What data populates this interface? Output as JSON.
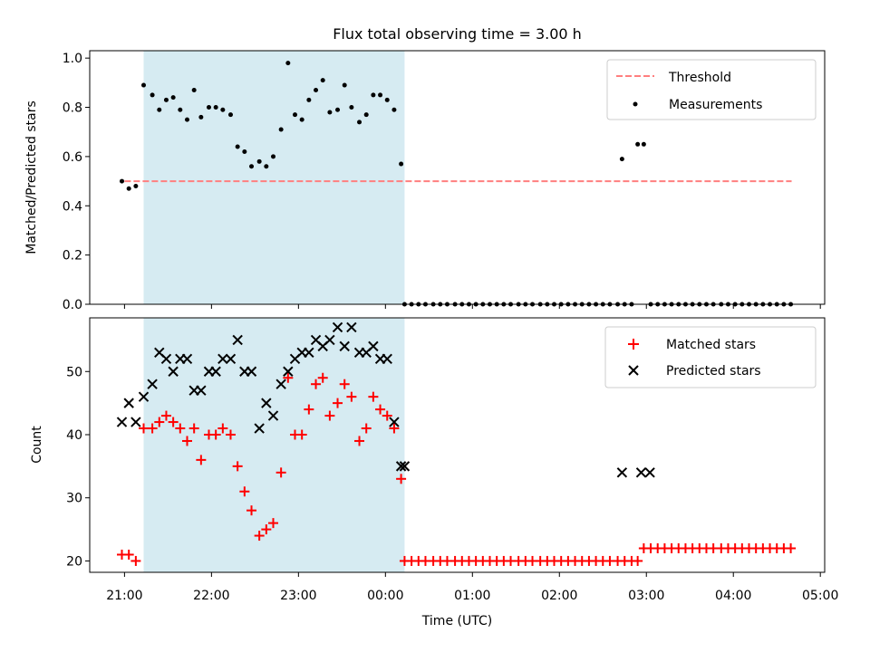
{
  "chart_data": [
    {
      "type": "scatter",
      "title": "Flux total observing time = 3.00 h",
      "xlabel": "",
      "ylabel": "Matched/Predicted stars",
      "ylim": [
        0,
        1.03
      ],
      "yticks": [
        0.0,
        0.2,
        0.4,
        0.6,
        0.8,
        1.0
      ],
      "ytick_labels": [
        "0.0",
        "0.2",
        "0.4",
        "0.6",
        "0.8",
        "1.0"
      ],
      "xlim": [
        20.6,
        29.05
      ],
      "xticks": [
        21,
        22,
        23,
        24,
        25,
        26,
        27,
        28,
        29
      ],
      "shaded_interval": [
        21.22,
        24.22
      ],
      "shade_color": "#add8e6",
      "grid": false,
      "legend_position": "top-right",
      "threshold": {
        "name": "Threshold",
        "value": 0.5,
        "x_range": [
          21.0,
          28.67
        ],
        "color": "#ff7f7f",
        "style": "dashed"
      },
      "measurements": {
        "name": "Measurements",
        "color": "#000000",
        "x": [
          20.97,
          21.05,
          21.13,
          21.22,
          21.32,
          21.4,
          21.48,
          21.56,
          21.64,
          21.72,
          21.8,
          21.88,
          21.97,
          22.05,
          22.13,
          22.22,
          22.3,
          22.38,
          22.46,
          22.55,
          22.63,
          22.71,
          22.8,
          22.88,
          22.96,
          23.04,
          23.12,
          23.2,
          23.28,
          23.36,
          23.45,
          23.53,
          23.61,
          23.7,
          23.78,
          23.86,
          23.94,
          24.02,
          24.1,
          24.18,
          24.22,
          24.3,
          24.38,
          24.46,
          24.55,
          24.63,
          24.71,
          24.8,
          24.88,
          24.96,
          25.04,
          25.12,
          25.2,
          25.28,
          25.36,
          25.44,
          25.53,
          25.61,
          25.69,
          25.78,
          25.86,
          25.94,
          26.02,
          26.1,
          26.18,
          26.26,
          26.34,
          26.42,
          26.5,
          26.58,
          26.67,
          26.72,
          26.75,
          26.83,
          26.9,
          26.97,
          27.05,
          27.13,
          27.21,
          27.29,
          27.37,
          27.45,
          27.53,
          27.61,
          27.69,
          27.77,
          27.86,
          27.94,
          28.02,
          28.1,
          28.18,
          28.26,
          28.34,
          28.42,
          28.5,
          28.58,
          28.66
        ],
        "y": [
          0.5,
          0.47,
          0.48,
          0.89,
          0.85,
          0.79,
          0.83,
          0.84,
          0.79,
          0.75,
          0.87,
          0.76,
          0.8,
          0.8,
          0.79,
          0.77,
          0.64,
          0.62,
          0.56,
          0.58,
          0.56,
          0.6,
          0.71,
          0.98,
          0.77,
          0.75,
          0.83,
          0.87,
          0.91,
          0.78,
          0.79,
          0.89,
          0.8,
          0.74,
          0.77,
          0.85,
          0.85,
          0.83,
          0.79,
          0.57,
          0.0,
          0.0,
          0.0,
          0.0,
          0.0,
          0.0,
          0.0,
          0.0,
          0.0,
          0.0,
          0.0,
          0.0,
          0.0,
          0.0,
          0.0,
          0.0,
          0.0,
          0.0,
          0.0,
          0.0,
          0.0,
          0.0,
          0.0,
          0.0,
          0.0,
          0.0,
          0.0,
          0.0,
          0.0,
          0.0,
          0.0,
          0.59,
          0.0,
          0.0,
          0.65,
          0.65,
          0.0,
          0.0,
          0.0,
          0.0,
          0.0,
          0.0,
          0.0,
          0.0,
          0.0,
          0.0,
          0.0,
          0.0,
          0.0,
          0.0,
          0.0,
          0.0,
          0.0,
          0.0,
          0.0,
          0.0,
          0.0
        ]
      }
    },
    {
      "type": "scatter",
      "title": "",
      "xlabel": "Time (UTC)",
      "ylabel": "Count",
      "ylim": [
        18.2,
        58.5
      ],
      "yticks": [
        20,
        30,
        40,
        50
      ],
      "ytick_labels": [
        "20",
        "30",
        "40",
        "50"
      ],
      "xlim": [
        20.6,
        29.05
      ],
      "xticks": [
        21,
        22,
        23,
        24,
        25,
        26,
        27,
        28,
        29
      ],
      "xtick_labels": [
        "21:00",
        "22:00",
        "23:00",
        "00:00",
        "01:00",
        "02:00",
        "03:00",
        "04:00",
        "05:00"
      ],
      "shaded_interval": [
        21.22,
        24.22
      ],
      "shade_color": "#add8e6",
      "grid": false,
      "legend_position": "top-right",
      "series": [
        {
          "name": "Matched stars",
          "marker": "plus",
          "color": "#ff0000",
          "x": [
            20.97,
            21.05,
            21.13,
            21.22,
            21.32,
            21.4,
            21.48,
            21.56,
            21.64,
            21.72,
            21.8,
            21.88,
            21.97,
            22.05,
            22.13,
            22.22,
            22.3,
            22.38,
            22.46,
            22.55,
            22.63,
            22.71,
            22.8,
            22.88,
            22.96,
            23.04,
            23.12,
            23.2,
            23.28,
            23.36,
            23.45,
            23.53,
            23.61,
            23.7,
            23.78,
            23.86,
            23.94,
            24.02,
            24.1,
            24.18,
            24.22,
            24.3,
            24.38,
            24.46,
            24.55,
            24.63,
            24.71,
            24.8,
            24.88,
            24.96,
            25.04,
            25.12,
            25.2,
            25.28,
            25.36,
            25.44,
            25.53,
            25.61,
            25.69,
            25.78,
            25.86,
            25.94,
            26.02,
            26.1,
            26.18,
            26.26,
            26.34,
            26.42,
            26.5,
            26.58,
            26.67,
            26.75,
            26.83,
            26.9,
            26.97,
            27.05,
            27.13,
            27.21,
            27.29,
            27.37,
            27.45,
            27.53,
            27.61,
            27.69,
            27.77,
            27.86,
            27.94,
            28.02,
            28.1,
            28.18,
            28.26,
            28.34,
            28.42,
            28.5,
            28.58,
            28.66
          ],
          "values": [
            21,
            21,
            20,
            41,
            41,
            42,
            43,
            42,
            41,
            39,
            41,
            36,
            40,
            40,
            41,
            40,
            35,
            31,
            28,
            24,
            25,
            26,
            34,
            49,
            40,
            40,
            44,
            48,
            49,
            43,
            45,
            48,
            46,
            39,
            41,
            46,
            44,
            43,
            41,
            33,
            20,
            20,
            20,
            20,
            20,
            20,
            20,
            20,
            20,
            20,
            20,
            20,
            20,
            20,
            20,
            20,
            20,
            20,
            20,
            20,
            20,
            20,
            20,
            20,
            20,
            20,
            20,
            20,
            20,
            20,
            20,
            20,
            20,
            20,
            22,
            22,
            22,
            22,
            22,
            22,
            22,
            22,
            22,
            22,
            22,
            22,
            22,
            22,
            22,
            22,
            22,
            22,
            22,
            22,
            22,
            22
          ]
        },
        {
          "name": "Predicted stars",
          "marker": "x",
          "color": "#000000",
          "x": [
            20.97,
            21.05,
            21.13,
            21.22,
            21.32,
            21.4,
            21.48,
            21.56,
            21.64,
            21.72,
            21.8,
            21.88,
            21.97,
            22.05,
            22.13,
            22.22,
            22.3,
            22.38,
            22.46,
            22.55,
            22.63,
            22.71,
            22.8,
            22.88,
            22.96,
            23.04,
            23.12,
            23.2,
            23.28,
            23.36,
            23.45,
            23.53,
            23.61,
            23.7,
            23.78,
            23.86,
            23.94,
            24.02,
            24.1,
            24.18,
            24.22,
            26.72,
            26.94,
            27.04
          ],
          "values": [
            42,
            45,
            42,
            46,
            48,
            53,
            52,
            50,
            52,
            52,
            47,
            47,
            50,
            50,
            52,
            52,
            55,
            50,
            50,
            41,
            45,
            43,
            48,
            50,
            52,
            53,
            53,
            55,
            54,
            55,
            57,
            54,
            57,
            53,
            53,
            54,
            52,
            52,
            42,
            35,
            35,
            34,
            34,
            34
          ]
        }
      ]
    }
  ]
}
